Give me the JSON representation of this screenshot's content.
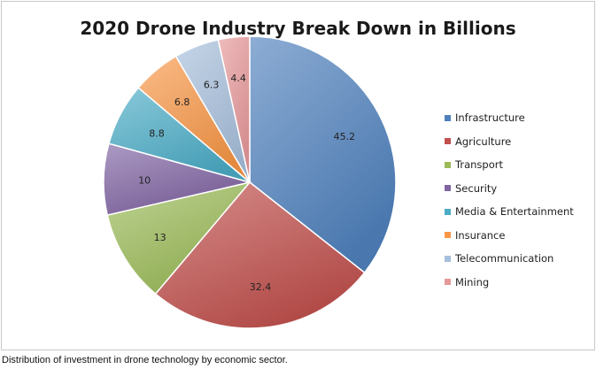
{
  "caption": "Distribution of investment in drone technology by economic sector.",
  "chart_data": {
    "type": "pie",
    "title": "2020 Drone Industry Break Down in Billions",
    "legend_position": "right",
    "slices": [
      {
        "label": "Infrastructure",
        "value": 45.2,
        "color": "#4f81bd"
      },
      {
        "label": "Agriculture",
        "value": 32.4,
        "color": "#c0504d"
      },
      {
        "label": "Transport",
        "value": 13,
        "color": "#9bbb59"
      },
      {
        "label": "Security",
        "value": 10,
        "color": "#8064a2"
      },
      {
        "label": "Media & Entertainment",
        "value": 8.8,
        "color": "#4bacc6"
      },
      {
        "label": "Insurance",
        "value": 6.8,
        "color": "#f79646"
      },
      {
        "label": "Telecommunication",
        "value": 6.3,
        "color": "#a7bfdc"
      },
      {
        "label": "Mining",
        "value": 4.4,
        "color": "#e6989a"
      }
    ]
  }
}
